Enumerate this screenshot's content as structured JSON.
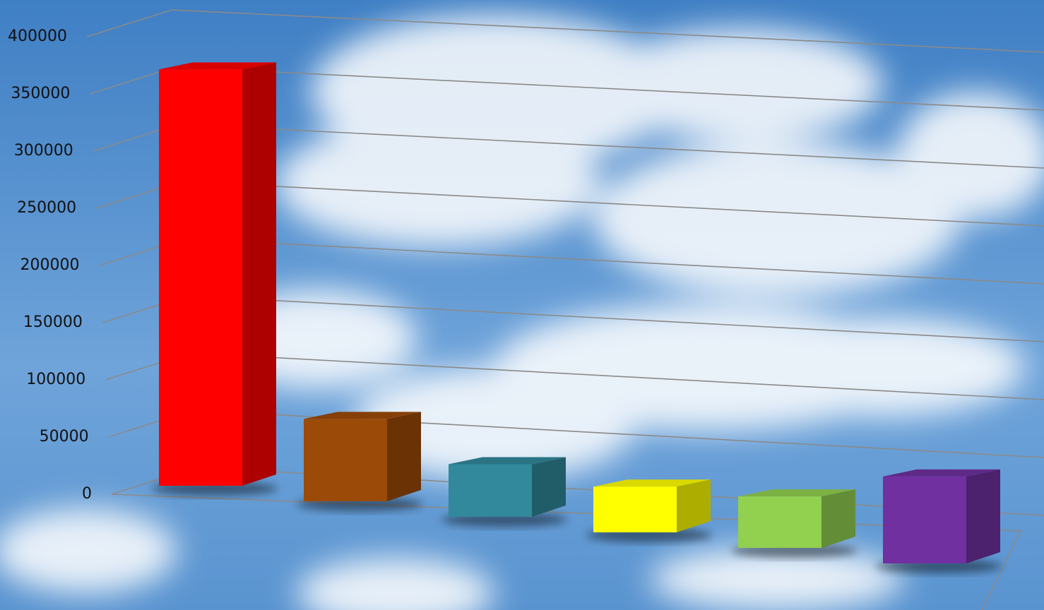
{
  "chart_data": {
    "type": "bar",
    "categories": [
      null,
      null,
      null,
      null,
      null,
      null
    ],
    "values": [
      364000,
      72000,
      46000,
      40000,
      45000,
      76000
    ],
    "colors": [
      "#ff0000",
      "#9c4a08",
      "#31899b",
      "#ffff00",
      "#92d050",
      "#7030a0"
    ],
    "ylim": [
      0,
      400000
    ],
    "yticks": [
      0,
      50000,
      100000,
      150000,
      200000,
      250000,
      300000,
      350000,
      400000
    ],
    "grid": true
  }
}
